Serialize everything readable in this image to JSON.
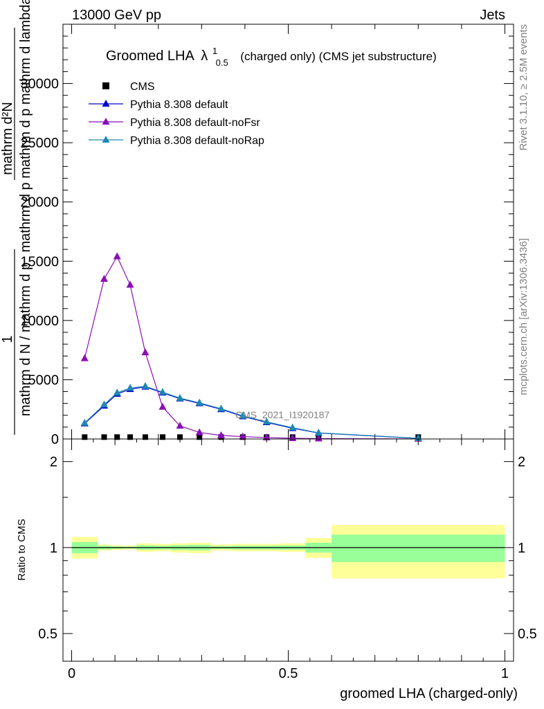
{
  "header": {
    "left": "13000 GeV pp",
    "right": "Jets"
  },
  "side_labels": {
    "rivet": "Rivet 3.1.10, ≥ 2.5M events",
    "mcplots": "mcplots.cern.ch [arXiv:1306.3436]"
  },
  "watermark": "CMS_2021_I1920187",
  "chart_data": [
    {
      "type": "line",
      "title_main": "Groomed LHA",
      "title_symbol": "λ",
      "title_sup": "1",
      "title_sub": "0.5",
      "title_rest": "(charged only) (CMS jet substructure)",
      "ylabel": {
        "numerator": "mathrm d²N",
        "denominator": "mathrm d p mathrm d p mathrm d lambda",
        "prefix_num": "1",
        "prefix_den": "mathrm d N / mathrm d p"
      },
      "ylim": [
        0,
        35000
      ],
      "yticks": [
        0,
        5000,
        10000,
        15000,
        20000,
        25000,
        30000
      ],
      "ytick_labels": [
        "0",
        "5000",
        "10000",
        "15000",
        "20000",
        "25000",
        "30000"
      ],
      "x": [
        0.03,
        0.075,
        0.105,
        0.135,
        0.17,
        0.21,
        0.25,
        0.295,
        0.345,
        0.395,
        0.45,
        0.51,
        0.57,
        0.8
      ],
      "series": [
        {
          "name": "CMS",
          "color": "#000000",
          "marker": "square",
          "values": [
            100,
            100,
            100,
            100,
            100,
            100,
            100,
            100,
            100,
            100,
            100,
            100,
            100,
            100
          ]
        },
        {
          "name": "Pythia 8.308 default",
          "color": "#0000cc",
          "marker": "triangle",
          "values": [
            1300,
            2800,
            3800,
            4200,
            4400,
            3900,
            3400,
            3000,
            2500,
            1900,
            1400,
            900,
            500,
            50
          ]
        },
        {
          "name": "Pythia 8.308 default-noFsr",
          "color": "#8a0fb5",
          "marker": "triangle",
          "values": [
            6800,
            13500,
            15400,
            13000,
            7300,
            2700,
            1100,
            550,
            300,
            200,
            120,
            60,
            30,
            5
          ]
        },
        {
          "name": "Pythia 8.308 default-noRap",
          "color": "#1e88b4",
          "marker": "triangle",
          "values": [
            1350,
            2900,
            3900,
            4300,
            4450,
            3950,
            3450,
            3050,
            2550,
            1950,
            1450,
            950,
            520,
            60
          ]
        }
      ]
    },
    {
      "type": "area",
      "ylabel": "Ratio to CMS",
      "xlabel": "groomed LHA (charged-only)",
      "xlim": [
        -0.02,
        1.02
      ],
      "ylim": [
        0.4,
        2.4
      ],
      "log_y": true,
      "yticks": [
        0.5,
        1,
        2
      ],
      "ytick_labels": [
        "0.5",
        "1",
        "2"
      ],
      "xticks": [
        0,
        0.5,
        1
      ],
      "xtick_labels": [
        "0",
        "0.5",
        "1"
      ],
      "reference": 1,
      "bands": [
        {
          "x0": 0.0,
          "x1": 0.06,
          "yellow": [
            0.915,
            1.09
          ],
          "green": [
            0.955,
            1.045
          ]
        },
        {
          "x0": 0.06,
          "x1": 0.09,
          "yellow": [
            0.975,
            1.025
          ],
          "green": [
            0.985,
            1.015
          ]
        },
        {
          "x0": 0.09,
          "x1": 0.12,
          "yellow": [
            0.98,
            1.02
          ],
          "green": [
            0.99,
            1.01
          ]
        },
        {
          "x0": 0.12,
          "x1": 0.15,
          "yellow": [
            0.985,
            1.015
          ],
          "green": [
            0.992,
            1.008
          ]
        },
        {
          "x0": 0.15,
          "x1": 0.19,
          "yellow": [
            0.965,
            1.035
          ],
          "green": [
            0.982,
            1.018
          ]
        },
        {
          "x0": 0.19,
          "x1": 0.23,
          "yellow": [
            0.97,
            1.03
          ],
          "green": [
            0.985,
            1.015
          ]
        },
        {
          "x0": 0.23,
          "x1": 0.27,
          "yellow": [
            0.96,
            1.035
          ],
          "green": [
            0.98,
            1.02
          ]
        },
        {
          "x0": 0.27,
          "x1": 0.32,
          "yellow": [
            0.955,
            1.04
          ],
          "green": [
            0.978,
            1.022
          ]
        },
        {
          "x0": 0.32,
          "x1": 0.37,
          "yellow": [
            0.975,
            1.025
          ],
          "green": [
            0.988,
            1.012
          ]
        },
        {
          "x0": 0.37,
          "x1": 0.42,
          "yellow": [
            0.97,
            1.03
          ],
          "green": [
            0.985,
            1.015
          ]
        },
        {
          "x0": 0.42,
          "x1": 0.48,
          "yellow": [
            0.97,
            1.03
          ],
          "green": [
            0.985,
            1.015
          ]
        },
        {
          "x0": 0.48,
          "x1": 0.54,
          "yellow": [
            0.965,
            1.035
          ],
          "green": [
            0.982,
            1.018
          ]
        },
        {
          "x0": 0.54,
          "x1": 0.6,
          "yellow": [
            0.92,
            1.08
          ],
          "green": [
            0.96,
            1.04
          ]
        },
        {
          "x0": 0.6,
          "x1": 1.0,
          "yellow": [
            0.78,
            1.2
          ],
          "green": [
            0.89,
            1.11
          ]
        }
      ]
    }
  ]
}
